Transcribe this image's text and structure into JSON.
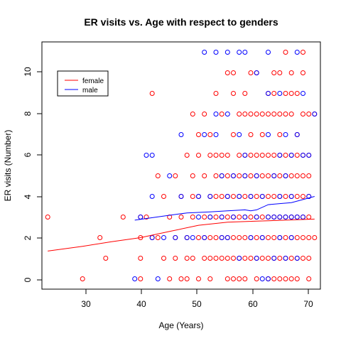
{
  "chart_data": {
    "type": "scatter",
    "title": "ER visits vs. Age with respect to genders",
    "xlabel": "Age (Years)",
    "ylabel": "ER visits (Number)",
    "xlim": [
      23,
      71
    ],
    "ylim": [
      -0.5,
      11.5
    ],
    "x_ticks": [
      "30",
      "40",
      "50",
      "60",
      "70"
    ],
    "y_ticks": [
      "0",
      "2",
      "4",
      "6",
      "8",
      "10"
    ],
    "legend_position": "top-left",
    "series": [
      {
        "name": "female",
        "color": "#FF0000",
        "points": [
          [
            24,
            3
          ],
          [
            30,
            0
          ],
          [
            33,
            2
          ],
          [
            34,
            1
          ],
          [
            37,
            3
          ],
          [
            40,
            3
          ],
          [
            40,
            1
          ],
          [
            40,
            2
          ],
          [
            40,
            0
          ],
          [
            41,
            3
          ],
          [
            42,
            9
          ],
          [
            42,
            2
          ],
          [
            43,
            2
          ],
          [
            43,
            5
          ],
          [
            44,
            4
          ],
          [
            44,
            1
          ],
          [
            45,
            3
          ],
          [
            45,
            0
          ],
          [
            46,
            5
          ],
          [
            46,
            2
          ],
          [
            46,
            1
          ],
          [
            47,
            4
          ],
          [
            47,
            0
          ],
          [
            47,
            3
          ],
          [
            48,
            6
          ],
          [
            48,
            1
          ],
          [
            48,
            2
          ],
          [
            48,
            0
          ],
          [
            49,
            8
          ],
          [
            49,
            4
          ],
          [
            49,
            3
          ],
          [
            49,
            5
          ],
          [
            49,
            1
          ],
          [
            50,
            7
          ],
          [
            50,
            2
          ],
          [
            50,
            6
          ],
          [
            50,
            0
          ],
          [
            50,
            4
          ],
          [
            51,
            8
          ],
          [
            51,
            5
          ],
          [
            51,
            3
          ],
          [
            51,
            1
          ],
          [
            51,
            2
          ],
          [
            52,
            6
          ],
          [
            52,
            4
          ],
          [
            52,
            7
          ],
          [
            52,
            0
          ],
          [
            52,
            3
          ],
          [
            52,
            2
          ],
          [
            52,
            1
          ],
          [
            53,
            9
          ],
          [
            53,
            5
          ],
          [
            53,
            6
          ],
          [
            53,
            3
          ],
          [
            53,
            2
          ],
          [
            53,
            4
          ],
          [
            53,
            1
          ],
          [
            54,
            8
          ],
          [
            54,
            5
          ],
          [
            54,
            3
          ],
          [
            54,
            2
          ],
          [
            54,
            6
          ],
          [
            54,
            1
          ],
          [
            54,
            4
          ],
          [
            55,
            10
          ],
          [
            55,
            6
          ],
          [
            55,
            3
          ],
          [
            55,
            5
          ],
          [
            55,
            2
          ],
          [
            55,
            4
          ],
          [
            55,
            0
          ],
          [
            55,
            1
          ],
          [
            56,
            10
          ],
          [
            56,
            9
          ],
          [
            56,
            7
          ],
          [
            56,
            5
          ],
          [
            56,
            3
          ],
          [
            56,
            2
          ],
          [
            56,
            4
          ],
          [
            56,
            1
          ],
          [
            56,
            0
          ],
          [
            57,
            8
          ],
          [
            57,
            6
          ],
          [
            57,
            3
          ],
          [
            57,
            5
          ],
          [
            57,
            2
          ],
          [
            57,
            4
          ],
          [
            57,
            1
          ],
          [
            57,
            0
          ],
          [
            58,
            9
          ],
          [
            58,
            8
          ],
          [
            58,
            6
          ],
          [
            58,
            5
          ],
          [
            58,
            3
          ],
          [
            58,
            2
          ],
          [
            58,
            4
          ],
          [
            58,
            1
          ],
          [
            58,
            0
          ],
          [
            59,
            10
          ],
          [
            59,
            8
          ],
          [
            59,
            7
          ],
          [
            59,
            6
          ],
          [
            59,
            5
          ],
          [
            59,
            3
          ],
          [
            59,
            4
          ],
          [
            59,
            2
          ],
          [
            59,
            1
          ],
          [
            60,
            10
          ],
          [
            60,
            8
          ],
          [
            60,
            6
          ],
          [
            60,
            5
          ],
          [
            60,
            3
          ],
          [
            60,
            2
          ],
          [
            60,
            4
          ],
          [
            60,
            1
          ],
          [
            60,
            0
          ],
          [
            61,
            8
          ],
          [
            61,
            7
          ],
          [
            61,
            6
          ],
          [
            61,
            5
          ],
          [
            61,
            3
          ],
          [
            61,
            4
          ],
          [
            61,
            2
          ],
          [
            61,
            1
          ],
          [
            62,
            9
          ],
          [
            62,
            8
          ],
          [
            62,
            6
          ],
          [
            62,
            5
          ],
          [
            62,
            3
          ],
          [
            62,
            4
          ],
          [
            62,
            2
          ],
          [
            62,
            1
          ],
          [
            62,
            0
          ],
          [
            63,
            10
          ],
          [
            63,
            9
          ],
          [
            63,
            8
          ],
          [
            63,
            6
          ],
          [
            63,
            5
          ],
          [
            63,
            3
          ],
          [
            63,
            4
          ],
          [
            63,
            2
          ],
          [
            63,
            1
          ],
          [
            63,
            0
          ],
          [
            64,
            10
          ],
          [
            64,
            8
          ],
          [
            64,
            7
          ],
          [
            64,
            6
          ],
          [
            64,
            5
          ],
          [
            64,
            3
          ],
          [
            64,
            4
          ],
          [
            64,
            2
          ],
          [
            64,
            1
          ],
          [
            64,
            0
          ],
          [
            65,
            11
          ],
          [
            65,
            9
          ],
          [
            65,
            8
          ],
          [
            65,
            6
          ],
          [
            65,
            5
          ],
          [
            65,
            3
          ],
          [
            65,
            4
          ],
          [
            65,
            2
          ],
          [
            65,
            1
          ],
          [
            65,
            0
          ],
          [
            66,
            10
          ],
          [
            66,
            9
          ],
          [
            66,
            8
          ],
          [
            66,
            6
          ],
          [
            66,
            5
          ],
          [
            66,
            3
          ],
          [
            66,
            4
          ],
          [
            66,
            2
          ],
          [
            66,
            1
          ],
          [
            66,
            0
          ],
          [
            67,
            9
          ],
          [
            67,
            7
          ],
          [
            67,
            6
          ],
          [
            67,
            5
          ],
          [
            67,
            3
          ],
          [
            67,
            4
          ],
          [
            67,
            2
          ],
          [
            67,
            1
          ],
          [
            67,
            0
          ],
          [
            68,
            11
          ],
          [
            68,
            10
          ],
          [
            68,
            8
          ],
          [
            68,
            6
          ],
          [
            68,
            5
          ],
          [
            68,
            4
          ],
          [
            68,
            3
          ],
          [
            68,
            2
          ],
          [
            68,
            1
          ],
          [
            69,
            8
          ],
          [
            69,
            6
          ],
          [
            69,
            5
          ],
          [
            69,
            4
          ],
          [
            69,
            3
          ],
          [
            69,
            2
          ],
          [
            69,
            1
          ],
          [
            69,
            0
          ],
          [
            70,
            8
          ],
          [
            70,
            2
          ]
        ],
        "trend_x": [
          24,
          30,
          35,
          40,
          45,
          50,
          55,
          60,
          65,
          70
        ],
        "trend_y": [
          1.35,
          1.58,
          1.8,
          2.0,
          2.3,
          2.6,
          2.75,
          2.8,
          2.85,
          2.9
        ]
      },
      {
        "name": "male",
        "color": "#0000FF",
        "points": [
          [
            39,
            0
          ],
          [
            40,
            3
          ],
          [
            41,
            6
          ],
          [
            42,
            6
          ],
          [
            42,
            4
          ],
          [
            42,
            2
          ],
          [
            43,
            0
          ],
          [
            44,
            2
          ],
          [
            45,
            5
          ],
          [
            46,
            2
          ],
          [
            47,
            7
          ],
          [
            47,
            4
          ],
          [
            48,
            2
          ],
          [
            49,
            2
          ],
          [
            50,
            4
          ],
          [
            50,
            3
          ],
          [
            51,
            11
          ],
          [
            51,
            7
          ],
          [
            51,
            2
          ],
          [
            52,
            4
          ],
          [
            52,
            3
          ],
          [
            53,
            11
          ],
          [
            53,
            8
          ],
          [
            53,
            7
          ],
          [
            54,
            3
          ],
          [
            54,
            2
          ],
          [
            54,
            5
          ],
          [
            55,
            11
          ],
          [
            55,
            8
          ],
          [
            55,
            4
          ],
          [
            55,
            2
          ],
          [
            56,
            5
          ],
          [
            56,
            3
          ],
          [
            57,
            11
          ],
          [
            57,
            7
          ],
          [
            57,
            4
          ],
          [
            57,
            1
          ],
          [
            58,
            11
          ],
          [
            58,
            6
          ],
          [
            58,
            5
          ],
          [
            58,
            3
          ],
          [
            59,
            4
          ],
          [
            59,
            2
          ],
          [
            60,
            10
          ],
          [
            60,
            5
          ],
          [
            60,
            3
          ],
          [
            60,
            1
          ],
          [
            61,
            4
          ],
          [
            61,
            2
          ],
          [
            61,
            0
          ],
          [
            62,
            11
          ],
          [
            62,
            9
          ],
          [
            62,
            7
          ],
          [
            62,
            3
          ],
          [
            62,
            0
          ],
          [
            63,
            5
          ],
          [
            63,
            3
          ],
          [
            63,
            1
          ],
          [
            64,
            9
          ],
          [
            64,
            6
          ],
          [
            64,
            4
          ],
          [
            64,
            3
          ],
          [
            64,
            2
          ],
          [
            65,
            7
          ],
          [
            65,
            5
          ],
          [
            65,
            3
          ],
          [
            65,
            1
          ],
          [
            66,
            6
          ],
          [
            66,
            4
          ],
          [
            66,
            3
          ],
          [
            66,
            2
          ],
          [
            67,
            11
          ],
          [
            67,
            7
          ],
          [
            67,
            3
          ],
          [
            67,
            1
          ],
          [
            68,
            9
          ],
          [
            68,
            6
          ],
          [
            68,
            3
          ],
          [
            69,
            6
          ],
          [
            69,
            4
          ],
          [
            70,
            8
          ]
        ],
        "trend_x": [
          39,
          44,
          48,
          52,
          55,
          58,
          59,
          60,
          62,
          64,
          66,
          68,
          70
        ],
        "trend_y": [
          2.85,
          3.05,
          3.2,
          3.25,
          3.3,
          3.35,
          3.3,
          3.35,
          3.6,
          3.65,
          3.7,
          3.85,
          4.0
        ]
      }
    ]
  }
}
